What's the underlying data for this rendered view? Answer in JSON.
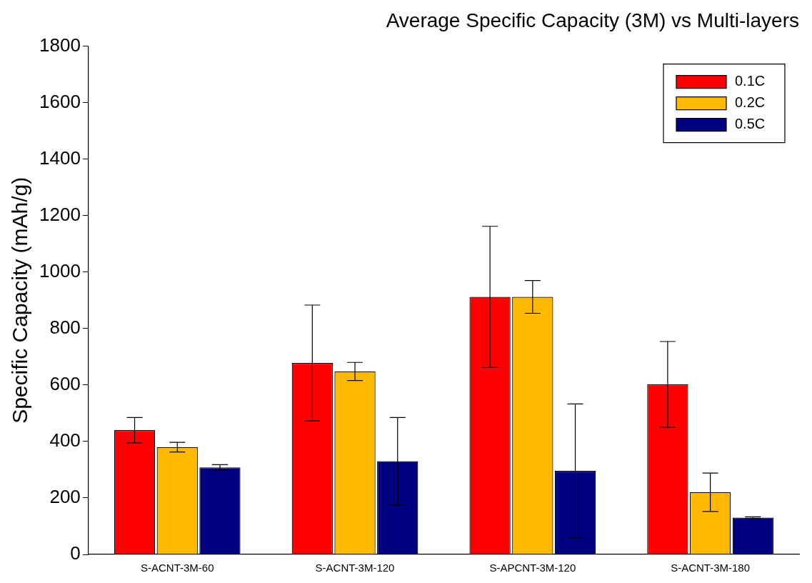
{
  "chart_data": {
    "type": "bar",
    "title": "Average Specific Capacity (3M) vs Multi-layers",
    "ylabel": "Specific Capacity (mAh/g)",
    "categories": [
      "S-ACNT-3M-60",
      "S-ACNT-3M-120",
      "S-APCNT-3M-120",
      "S-ACNT-3M-180"
    ],
    "series": [
      {
        "name": "0.1C",
        "color": "#ff0000",
        "values": [
          440,
          678,
          912,
          602
        ],
        "errors": [
          45,
          205,
          250,
          152
        ]
      },
      {
        "name": "0.2C",
        "color": "#ffb900",
        "values": [
          380,
          648,
          912,
          220
        ],
        "errors": [
          17,
          32,
          58,
          68
        ]
      },
      {
        "name": "0.5C",
        "color": "#000080",
        "values": [
          308,
          330,
          296,
          130
        ],
        "errors": [
          10,
          155,
          237,
          3
        ]
      }
    ],
    "ylim": [
      0,
      1800
    ],
    "yticks": [
      0,
      200,
      400,
      600,
      800,
      1000,
      1200,
      1400,
      1600,
      1800
    ],
    "grid": false,
    "legend": "top right"
  }
}
